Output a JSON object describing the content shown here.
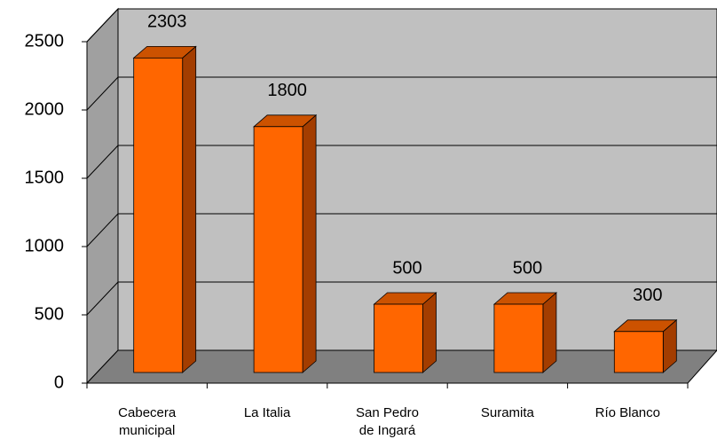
{
  "chart_data": {
    "type": "bar3d",
    "categories": [
      [
        "Cabecera",
        "municipal"
      ],
      [
        "La Italia"
      ],
      [
        "San Pedro",
        "de Ingará"
      ],
      [
        "Suramita"
      ],
      [
        "Río Blanco"
      ]
    ],
    "values": [
      2303,
      1800,
      500,
      500,
      300
    ],
    "colors": {
      "front": "#ff6600",
      "side": "#a33d00",
      "top": "#cc5200"
    },
    "ylim": [
      0,
      2500
    ],
    "yticks": [
      0,
      500,
      1000,
      1500,
      2000,
      2500
    ],
    "grid": true
  }
}
